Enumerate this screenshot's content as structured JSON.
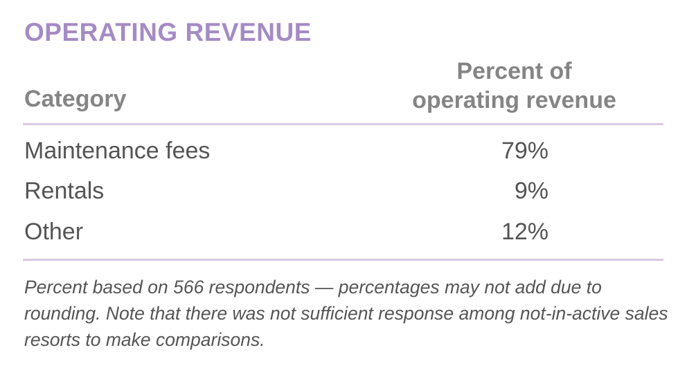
{
  "title": "OPERATING REVENUE",
  "chart_data": {
    "type": "table",
    "columns": [
      "Category",
      "Percent of operating revenue"
    ],
    "column_lines": [
      "Percent of",
      "operating revenue"
    ],
    "rows": [
      {
        "category": "Maintenance fees",
        "value": "79%"
      },
      {
        "category": "Rentals",
        "value": "9%"
      },
      {
        "category": "Other",
        "value": "12%"
      }
    ]
  },
  "footnote": "Percent based on 566 respondents — percentages may not add due to rounding. Note that there was not sufficient response among not-in-active sales resorts to make comparisons.",
  "colors": {
    "title": "#a48bc5",
    "header": "#858585",
    "rule": "#d6cae4",
    "text": "#545454"
  }
}
